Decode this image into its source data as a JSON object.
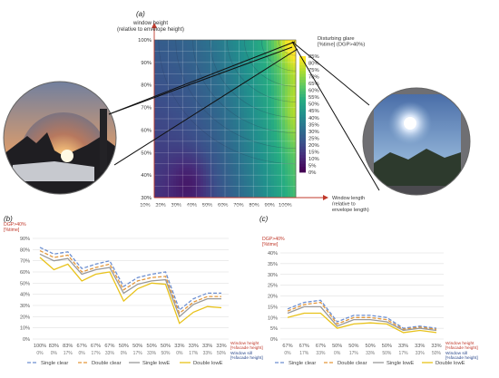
{
  "panel_labels": {
    "a": "(a)",
    "b": "(b)",
    "c": "(c)"
  },
  "chart_data": [
    {
      "type": "heatmap",
      "panel": "(a)",
      "xlabel": "Window length (relative to envelope length)",
      "xlabel_lines": [
        "Window length",
        "(relative to",
        "envelope length)"
      ],
      "ylabel": "window height (relative to envelope height)",
      "ylabel_lines": [
        "window height",
        "(relative to envelope height)"
      ],
      "x_ticks": [
        "10%",
        "20%",
        "30%",
        "40%",
        "50%",
        "60%",
        "70%",
        "80%",
        "90%",
        "100%"
      ],
      "y_ticks": [
        "30%",
        "40%",
        "50%",
        "60%",
        "70%",
        "80%",
        "90%",
        "100%"
      ],
      "colorbar": {
        "title_lines": [
          "Disturbing glare",
          "[%time] (DGP>40%)"
        ],
        "ticks": [
          "0%",
          "5%",
          "10%",
          "15%",
          "20%",
          "25%",
          "30%",
          "35%",
          "40%",
          "45%",
          "50%",
          "55%",
          "60%",
          "65%",
          "70%",
          "75%",
          "80%",
          "85%"
        ],
        "range": [
          0,
          85
        ]
      },
      "grid": true
    },
    {
      "type": "line",
      "panel": "(b)",
      "ylabel_lines": [
        "DGP>40%",
        "[%time]"
      ],
      "ylim": [
        0,
        90
      ],
      "y_ticks": [
        "0%",
        "10%",
        "20%",
        "30%",
        "40%",
        "50%",
        "60%",
        "70%",
        "80%",
        "90%"
      ],
      "x_window_height": [
        "100%",
        "83%",
        "83%",
        "67%",
        "67%",
        "67%",
        "50%",
        "50%",
        "50%",
        "50%",
        "33%",
        "33%",
        "33%",
        "33%"
      ],
      "x_window_sill": [
        "0%",
        "0%",
        "17%",
        "0%",
        "17%",
        "33%",
        "0%",
        "17%",
        "33%",
        "50%",
        "0%",
        "17%",
        "33%",
        "50%"
      ],
      "x_label_height_lines": [
        "Window height",
        "[%facade height]"
      ],
      "x_label_sill_lines": [
        "Window sill",
        "[%facade height]"
      ],
      "series": [
        {
          "name": "Single clear",
          "color": "#6d8fd0",
          "dash": "4,2",
          "values": [
            82,
            76,
            78,
            63,
            67,
            70,
            47,
            55,
            58,
            60,
            26,
            36,
            41,
            41
          ]
        },
        {
          "name": "Double clear",
          "color": "#e3973a",
          "dash": "4,2",
          "values": [
            79,
            73,
            75,
            60,
            64,
            67,
            44,
            52,
            55,
            56,
            23,
            33,
            38,
            38
          ]
        },
        {
          "name": "Single lowE",
          "color": "#999999",
          "dash": "",
          "values": [
            76,
            70,
            72,
            58,
            62,
            64,
            41,
            49,
            52,
            53,
            20,
            31,
            36,
            36
          ]
        },
        {
          "name": "Double lowE",
          "color": "#e8c21a",
          "dash": "",
          "values": [
            73,
            62,
            67,
            52,
            58,
            60,
            34,
            45,
            50,
            49,
            14,
            24,
            29,
            28
          ]
        }
      ]
    },
    {
      "type": "line",
      "panel": "(c)",
      "ylabel_lines": [
        "DGP>40%",
        "[%time]"
      ],
      "ylim": [
        0,
        40
      ],
      "y_ticks": [
        "0%",
        "5%",
        "10%",
        "15%",
        "20%",
        "25%",
        "30%",
        "35%",
        "40%"
      ],
      "x_window_height": [
        "67%",
        "67%",
        "67%",
        "50%",
        "50%",
        "50%",
        "50%",
        "33%",
        "33%",
        "33%"
      ],
      "x_window_sill": [
        "0%",
        "17%",
        "33%",
        "0%",
        "17%",
        "33%",
        "50%",
        "17%",
        "33%",
        "50%"
      ],
      "x_label_height_lines": [
        "Window height",
        "[%facade height]"
      ],
      "x_label_sill_lines": [
        "Window sill",
        "[%facade height]"
      ],
      "series": [
        {
          "name": "Single clear",
          "color": "#6d8fd0",
          "dash": "4,2",
          "values": [
            14,
            17,
            18,
            8,
            11,
            11,
            10,
            5,
            6,
            5
          ]
        },
        {
          "name": "Double clear",
          "color": "#e3973a",
          "dash": "4,2",
          "values": [
            13,
            16,
            17,
            7,
            10,
            10,
            9,
            4.5,
            5.5,
            4.5
          ]
        },
        {
          "name": "Single lowE",
          "color": "#999999",
          "dash": "",
          "values": [
            12,
            15,
            15,
            6,
            9,
            9,
            8,
            4,
            5,
            4
          ]
        },
        {
          "name": "Double lowE",
          "color": "#e8c21a",
          "dash": "",
          "values": [
            10,
            12,
            12,
            5,
            7,
            7.5,
            7,
            3,
            4,
            3
          ]
        }
      ]
    }
  ]
}
